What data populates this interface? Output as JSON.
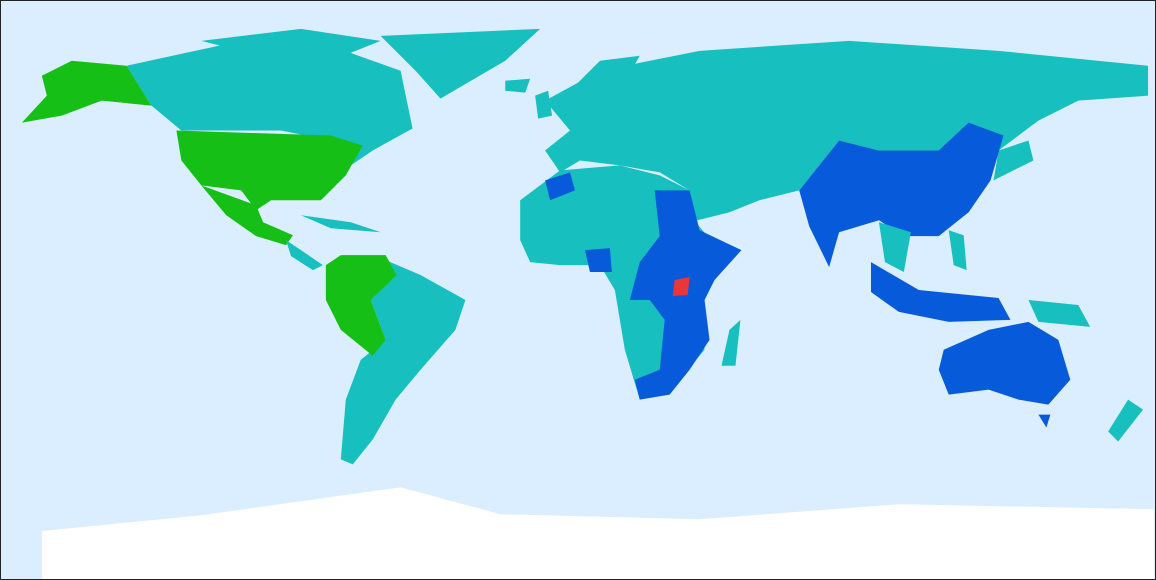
{
  "map": {
    "colors": {
      "ocean": "#dbeeff",
      "teal": "#17bfbf",
      "green": "#16bf16",
      "blue": "#075bdb",
      "red": "#e8363c",
      "ice": "#ffffff"
    }
  }
}
